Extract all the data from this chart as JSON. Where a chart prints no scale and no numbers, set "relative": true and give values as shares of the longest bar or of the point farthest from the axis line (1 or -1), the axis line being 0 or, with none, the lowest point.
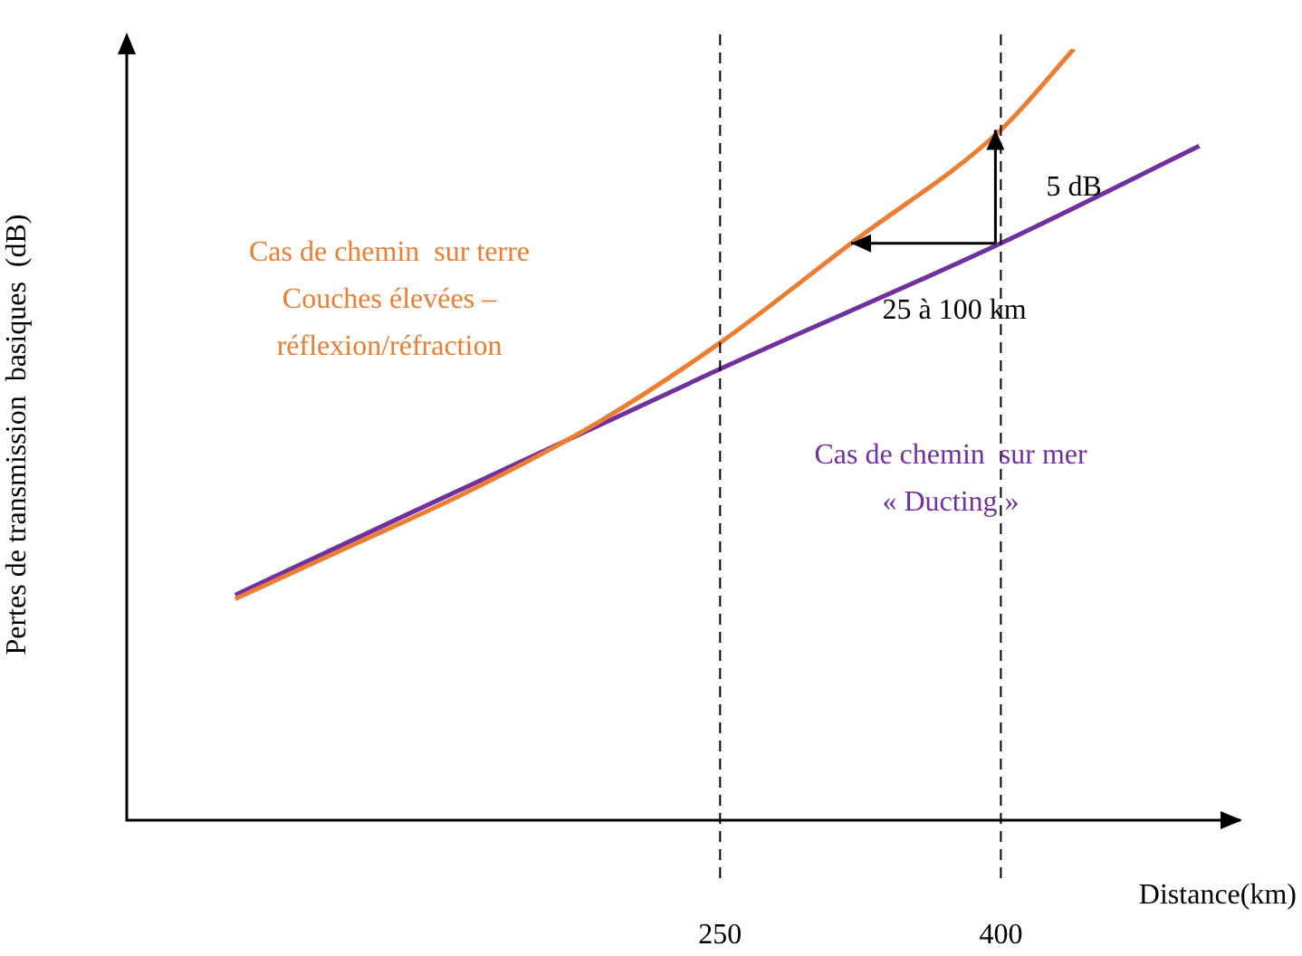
{
  "chart_data": {
    "type": "line",
    "relative": true,
    "xlabel": "Distance(km)",
    "ylabel": "Pertes de transmission  basiques  (dB)",
    "xlim": [
      -67,
      528
    ],
    "xticks": [
      250,
      400
    ],
    "grid": false,
    "legend": false,
    "marker": "none",
    "line_style": "solid",
    "series": [
      {
        "name": "Cas de chemin  sur terre\nCouches élevées –\nréflexion/réfraction",
        "color": "#ed7d31",
        "x": [
          -9,
          54,
          117,
          185,
          250,
          320,
          400,
          439
        ],
        "values": [
          0.287,
          0.357,
          0.428,
          0.516,
          0.619,
          0.748,
          0.895,
          1
        ]
      },
      {
        "name": "Cas de chemin  sur mer\n« Ducting »",
        "color": "#7030a0",
        "x": [
          -9,
          250,
          400,
          506
        ],
        "values": [
          0.292,
          0.585,
          0.748,
          0.874
        ]
      }
    ],
    "ref_lines": [
      {
        "axis": "x",
        "value": 250,
        "color": "#000000",
        "line_style": "dashed"
      },
      {
        "axis": "x",
        "value": 400,
        "color": "#000000",
        "line_style": "dashed"
      }
    ],
    "annotations": [
      {
        "text": "5 dB",
        "x": 400,
        "y": 0.82
      },
      "25 à 100 km"
    ]
  }
}
